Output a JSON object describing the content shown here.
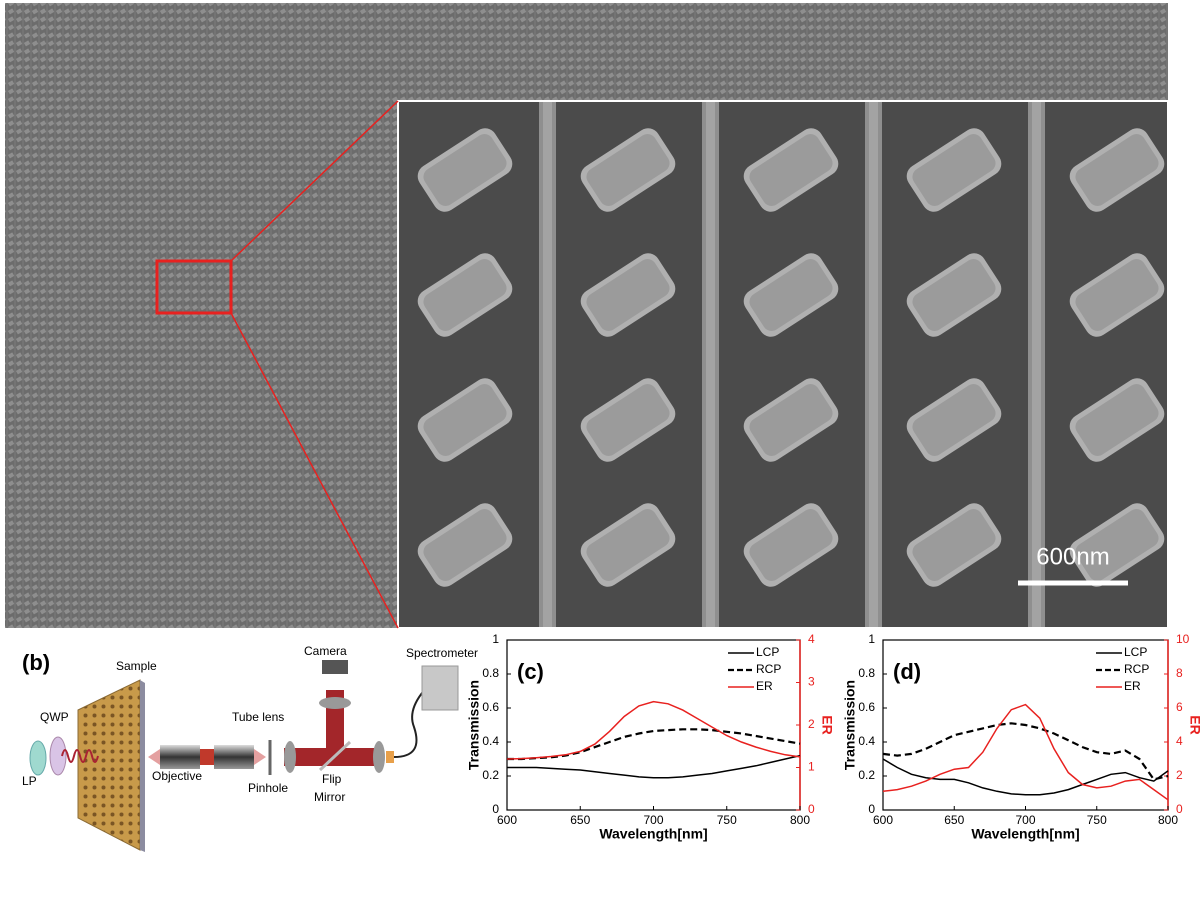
{
  "sem": {
    "scale_bar": "600nm"
  },
  "schematic": {
    "label": "(b)",
    "sample": "Sample",
    "qwp": "QWP",
    "lp": "LP",
    "tube_lens": "Tube lens",
    "objective": "Objective",
    "pinhole": "Pinhole",
    "flip_mirror": [
      "Flip",
      "Mirror"
    ],
    "camera": "Camera",
    "spectrometer": "Spectrometer"
  },
  "chart_data": [
    {
      "type": "line",
      "label": "(c)",
      "xlabel": "Wavelength[nm]",
      "ylabel": "Transmission",
      "y2label": "ER",
      "x": [
        600,
        610,
        620,
        630,
        640,
        650,
        660,
        670,
        680,
        690,
        700,
        710,
        720,
        730,
        740,
        750,
        760,
        770,
        780,
        790,
        800
      ],
      "xlim": [
        600,
        800
      ],
      "xticks": [
        600,
        650,
        700,
        750,
        800
      ],
      "ylim": [
        0,
        1
      ],
      "yticks": [
        0,
        0.2,
        0.4,
        0.6,
        0.8,
        1
      ],
      "y2lim": [
        0,
        4
      ],
      "y2ticks": [
        0,
        1,
        2,
        3,
        4
      ],
      "y2color": "#e8211f",
      "legend": "upper right",
      "series": [
        {
          "name": "LCP",
          "color": "#000000",
          "dashed": false,
          "values": [
            0.25,
            0.25,
            0.25,
            0.245,
            0.24,
            0.235,
            0.225,
            0.215,
            0.205,
            0.195,
            0.19,
            0.19,
            0.195,
            0.205,
            0.215,
            0.23,
            0.245,
            0.26,
            0.28,
            0.3,
            0.32
          ]
        },
        {
          "name": "RCP",
          "color": "#000000",
          "dashed": true,
          "values": [
            0.3,
            0.3,
            0.305,
            0.31,
            0.32,
            0.34,
            0.37,
            0.4,
            0.43,
            0.45,
            0.465,
            0.47,
            0.475,
            0.475,
            0.47,
            0.46,
            0.45,
            0.435,
            0.42,
            0.405,
            0.39
          ]
        },
        {
          "name": "ER",
          "color": "#e8211f",
          "dashed": false,
          "axis": "y2",
          "values": [
            1.2,
            1.21,
            1.23,
            1.26,
            1.3,
            1.38,
            1.55,
            1.85,
            2.2,
            2.45,
            2.55,
            2.5,
            2.35,
            2.15,
            1.95,
            1.75,
            1.6,
            1.48,
            1.38,
            1.3,
            1.25
          ]
        }
      ]
    },
    {
      "type": "line",
      "label": "(d)",
      "xlabel": "Wavelength[nm]",
      "ylabel": "Transmission",
      "y2label": "ER",
      "x": [
        600,
        610,
        620,
        630,
        640,
        650,
        660,
        670,
        680,
        690,
        700,
        710,
        720,
        730,
        740,
        750,
        760,
        770,
        780,
        790,
        800
      ],
      "xlim": [
        600,
        800
      ],
      "xticks": [
        600,
        650,
        700,
        750,
        800
      ],
      "ylim": [
        0,
        1
      ],
      "yticks": [
        0,
        0.2,
        0.4,
        0.6,
        0.8,
        1
      ],
      "y2lim": [
        0,
        10
      ],
      "y2ticks": [
        0,
        2,
        4,
        6,
        8,
        10
      ],
      "y2color": "#e8211f",
      "legend": "upper right",
      "series": [
        {
          "name": "LCP",
          "color": "#000000",
          "dashed": false,
          "values": [
            0.3,
            0.25,
            0.21,
            0.19,
            0.18,
            0.18,
            0.16,
            0.13,
            0.11,
            0.095,
            0.09,
            0.09,
            0.1,
            0.12,
            0.15,
            0.18,
            0.21,
            0.22,
            0.19,
            0.17,
            0.23
          ]
        },
        {
          "name": "RCP",
          "color": "#000000",
          "dashed": true,
          "values": [
            0.33,
            0.32,
            0.33,
            0.36,
            0.4,
            0.44,
            0.46,
            0.48,
            0.5,
            0.51,
            0.5,
            0.48,
            0.45,
            0.41,
            0.37,
            0.34,
            0.33,
            0.35,
            0.3,
            0.18,
            0.2
          ]
        },
        {
          "name": "ER",
          "color": "#e8211f",
          "dashed": false,
          "axis": "y2",
          "values": [
            1.1,
            1.2,
            1.4,
            1.7,
            2.1,
            2.4,
            2.5,
            3.4,
            4.8,
            5.9,
            6.2,
            5.4,
            3.6,
            2.2,
            1.5,
            1.3,
            1.4,
            1.7,
            1.8,
            1.2,
            0.6
          ]
        }
      ]
    }
  ]
}
